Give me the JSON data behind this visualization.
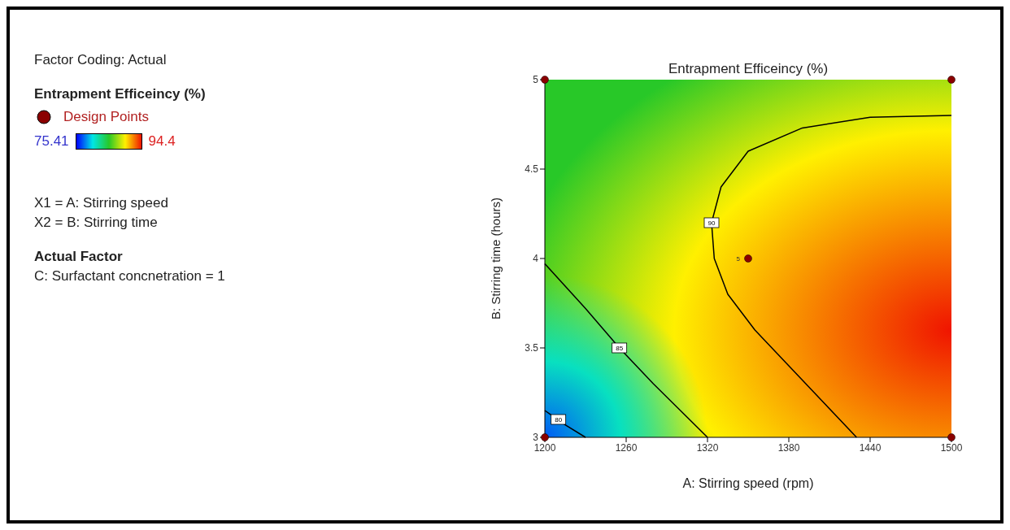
{
  "chart_data": {
    "type": "scatter",
    "title": "Entrapment Efficeincy (%)",
    "xlabel": "A: Stirring speed (rpm)",
    "ylabel": "B: Stirring time (hours)",
    "legend_title": "Entrapment Efficeincy (%)",
    "legend": "left",
    "xlim": [
      1200,
      1500
    ],
    "xticks": [
      1200,
      1260,
      1320,
      1380,
      1440,
      1500
    ],
    "ylim": [
      3,
      5
    ],
    "yticks": [
      3,
      3.5,
      4,
      4.5,
      5
    ],
    "series": [
      {
        "type": "line",
        "color": "#000000",
        "x": [
          1500,
          1440,
          1390,
          1350,
          1330,
          1323,
          1325,
          1335,
          1355,
          1380,
          1405,
          1430
        ],
        "values": [
          4.8,
          4.79,
          4.73,
          4.6,
          4.4,
          4.2,
          4,
          3.8,
          3.6,
          3.4,
          3.2,
          3
        ]
      },
      {
        "type": "line",
        "color": "#000000",
        "x": [
          1200,
          1230,
          1255,
          1280,
          1300,
          1320
        ],
        "values": [
          3.97,
          3.72,
          3.5,
          3.3,
          3.15,
          3
        ]
      },
      {
        "type": "line",
        "color": "#000000",
        "x": [
          1200,
          1215,
          1230
        ],
        "values": [
          3.15,
          3.07,
          3
        ]
      },
      {
        "name": "Design Points",
        "color": "#8b0000",
        "marker": "circle",
        "x": [
          1200,
          1200,
          1500,
          1500,
          1350
        ],
        "values": [
          3,
          5,
          3,
          5,
          4
        ]
      }
    ],
    "annotations": [
      "Factor Coding: Actual",
      "75.41",
      "94.4",
      "X1 = A: Stirring speed",
      "X2 = B: Stirring time",
      "Actual Factor",
      "C: Surfactant concnetration = 1",
      {
        "text": "90",
        "x": 1323,
        "y": 4.2
      },
      {
        "text": "85",
        "x": 1255,
        "y": 3.5
      },
      {
        "text": "80",
        "x": 1210,
        "y": 3.1
      },
      {
        "text": "5",
        "x": 1350,
        "y": 4
      }
    ]
  }
}
